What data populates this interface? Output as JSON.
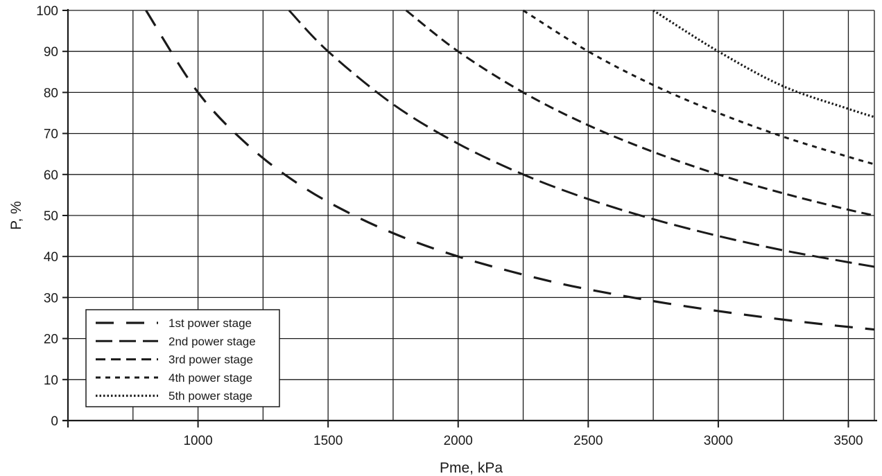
{
  "chart_data": {
    "type": "line",
    "xlabel": "Pme, kPa",
    "ylabel": "P, %",
    "xlim": [
      500,
      3600
    ],
    "ylim": [
      0,
      100
    ],
    "x_ticks": [
      1000,
      1500,
      2000,
      2500,
      3000,
      3500
    ],
    "x_gridlines": [
      750,
      1000,
      1250,
      1500,
      1750,
      2000,
      2250,
      2500,
      2750,
      3000,
      3250,
      3500
    ],
    "y_ticks": [
      0,
      10,
      20,
      30,
      40,
      50,
      60,
      70,
      80,
      90,
      100
    ],
    "grid": true,
    "legend_position": "bottom-left",
    "series": [
      {
        "name": "1st power stage",
        "x": [
          800,
          1000,
          1200,
          1400,
          1600,
          1800,
          2000,
          2200,
          2400,
          2600,
          2800,
          3000,
          3200,
          3400,
          3600
        ],
        "values": [
          100,
          80,
          66.7,
          57.1,
          50,
          44.4,
          40,
          36.4,
          33.3,
          30.8,
          28.6,
          26.7,
          25,
          23.5,
          22.2
        ]
      },
      {
        "name": "2nd power stage",
        "x": [
          1350,
          1500,
          1750,
          2000,
          2250,
          2500,
          2750,
          3000,
          3250,
          3500,
          3600
        ],
        "values": [
          100,
          90,
          77.1,
          67.5,
          60,
          54,
          49.1,
          45,
          41.5,
          38.6,
          37.5
        ]
      },
      {
        "name": "3rd power stage",
        "x": [
          1800,
          2000,
          2250,
          2500,
          2750,
          3000,
          3250,
          3500,
          3600
        ],
        "values": [
          100,
          90,
          80,
          72,
          65.5,
          60,
          55.4,
          51.4,
          50
        ]
      },
      {
        "name": "4th power stage",
        "x": [
          2250,
          2500,
          2750,
          3000,
          3250,
          3500,
          3600
        ],
        "values": [
          100,
          90,
          81.8,
          75,
          69.2,
          64.3,
          62.5
        ]
      },
      {
        "name": "5th power stage",
        "x": [
          2750,
          3000,
          3250,
          3500,
          3600
        ],
        "values": [
          100,
          90,
          81.5,
          76,
          74
        ]
      }
    ]
  },
  "line_color": "#1a1a1a"
}
